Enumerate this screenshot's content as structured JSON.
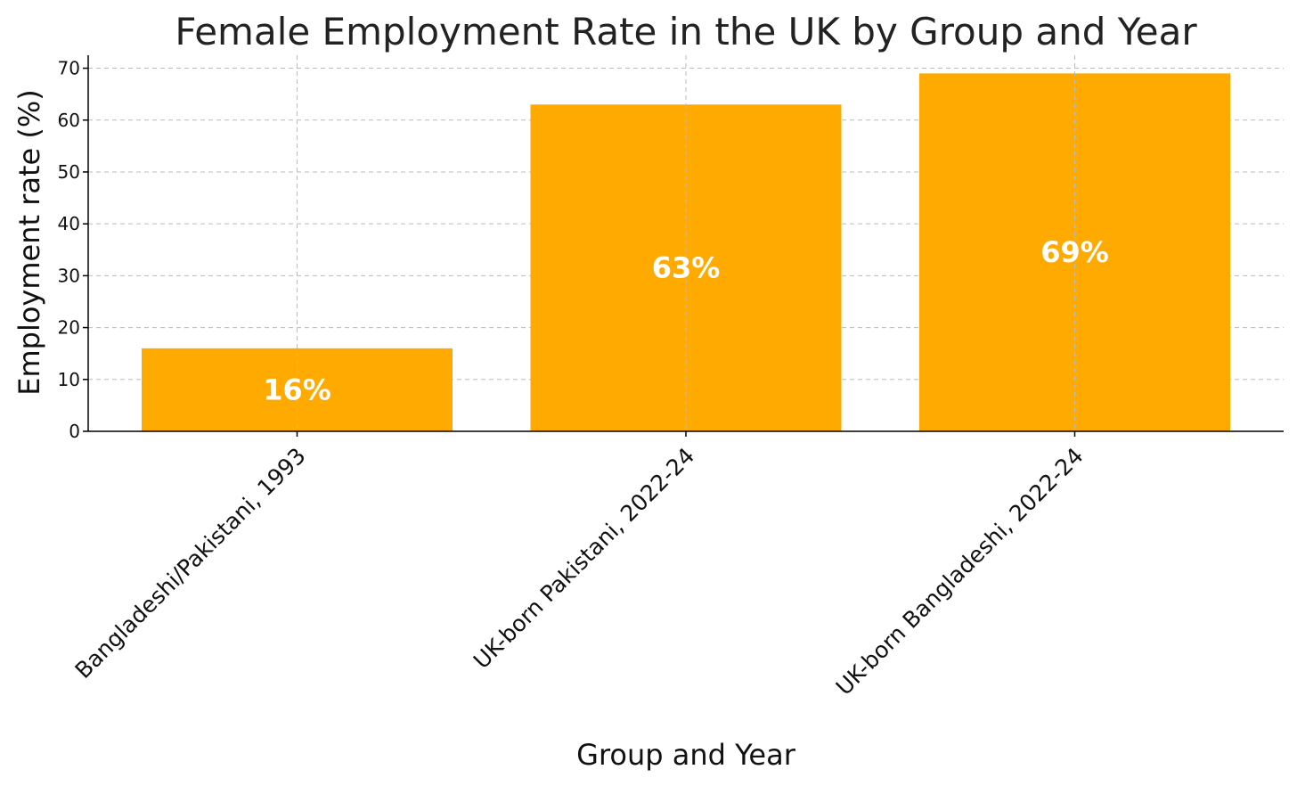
{
  "chart_data": {
    "type": "bar",
    "title": "Female Employment Rate in the UK by Group and Year",
    "xlabel": "Group and Year",
    "ylabel": "Employment rate (%)",
    "categories": [
      "Bangladeshi/Pakistani, 1993",
      "UK-born Pakistani, 2022-24",
      "UK-born Bangladeshi, 2022-24"
    ],
    "values": [
      16,
      63,
      69
    ],
    "data_labels": [
      "16%",
      "63%",
      "69%"
    ],
    "ylim": [
      0,
      72.5
    ],
    "yticks": [
      0,
      10,
      20,
      30,
      40,
      50,
      60,
      70
    ],
    "grid": true,
    "bar_color": "#FFAA00",
    "label_color": "#FFFFFF"
  }
}
